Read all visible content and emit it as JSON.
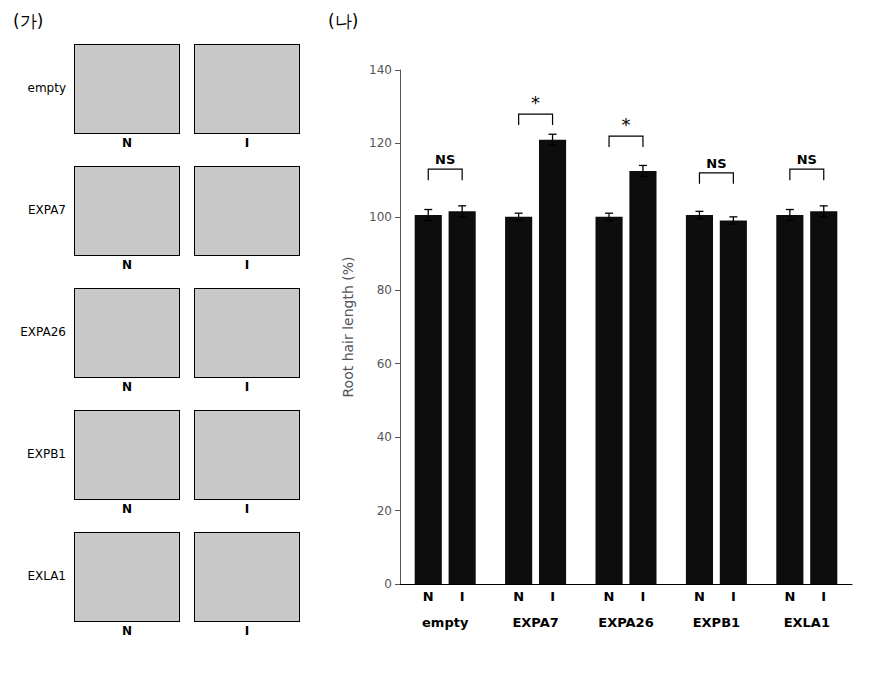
{
  "chart_data": {
    "type": "bar",
    "categories": [
      "empty",
      "EXPA7",
      "EXPA26",
      "EXPB1",
      "EXLA1"
    ],
    "series": [
      {
        "name": "N",
        "values": [
          100.5,
          100.0,
          100.0,
          100.5,
          100.5
        ],
        "errors": [
          1.5,
          1.0,
          1.0,
          1.0,
          1.5
        ]
      },
      {
        "name": "I",
        "values": [
          101.5,
          121.0,
          112.5,
          99.0,
          101.5
        ],
        "errors": [
          1.5,
          1.5,
          1.5,
          1.0,
          1.5
        ]
      }
    ],
    "color": "#0d0d0d",
    "ylabel": "Root hair length (%)",
    "ylim": [
      0,
      140
    ],
    "yticks": [
      0,
      20,
      40,
      60,
      80,
      100,
      120,
      140
    ],
    "grid": false,
    "significance": [
      "NS",
      "*",
      "*",
      "NS",
      "NS"
    ],
    "bracket_heights": [
      113,
      128,
      122,
      112,
      113
    ],
    "panel_labels": [
      "(가)",
      "(나)"
    ],
    "image_rows": [
      "empty",
      "EXPA7",
      "EXPA26",
      "EXPB1",
      "EXLA1"
    ]
  }
}
